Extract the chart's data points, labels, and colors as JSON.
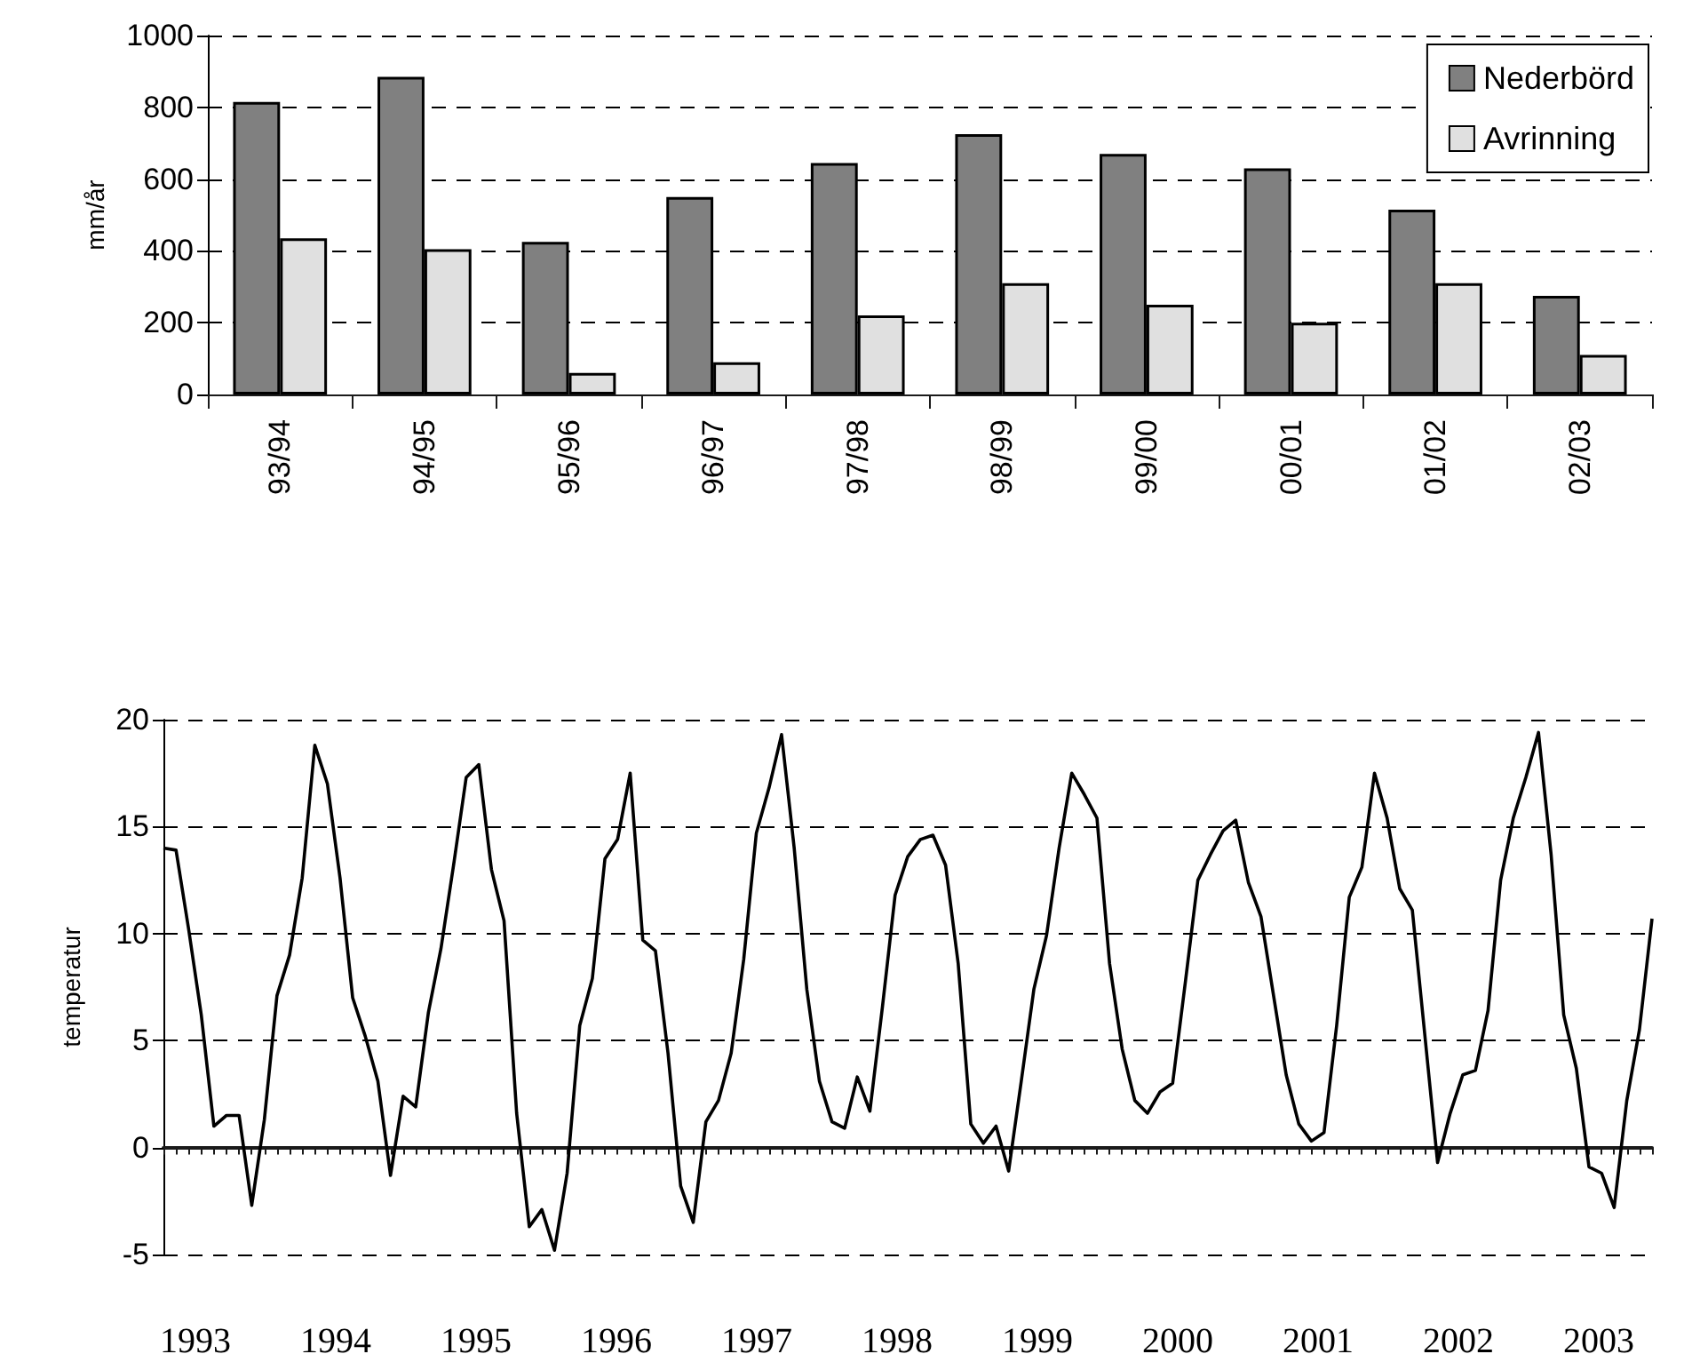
{
  "chart_data": [
    {
      "type": "bar",
      "ylabel": "mm/år",
      "categories": [
        "93/94",
        "94/95",
        "95/96",
        "96/97",
        "97/98",
        "98/99",
        "99/00",
        "00/01",
        "01/02",
        "02/03"
      ],
      "series": [
        {
          "name": "Nederbörd",
          "color": "#808080",
          "values": [
            815,
            885,
            425,
            550,
            645,
            725,
            670,
            630,
            515,
            275
          ]
        },
        {
          "name": "Avrinning",
          "color": "#e0e0e0",
          "values": [
            435,
            405,
            60,
            90,
            220,
            310,
            250,
            200,
            310,
            110
          ]
        }
      ],
      "ylim": [
        0,
        1000
      ],
      "yticks": [
        0,
        200,
        400,
        600,
        800,
        1000
      ],
      "grid": "y",
      "legend": "top right"
    },
    {
      "type": "line",
      "ylabel": "temperatur",
      "tick_labels": "y",
      "line_style": "solid",
      "categories": [
        null,
        null,
        null,
        null,
        null,
        null,
        null,
        null,
        null,
        null,
        null,
        null,
        null,
        null,
        null,
        null,
        null,
        null,
        null,
        null,
        null,
        null,
        null,
        null,
        null,
        null,
        null,
        null,
        null,
        null,
        null,
        null,
        null,
        null,
        null,
        null,
        null,
        null,
        null,
        null,
        null,
        null,
        null,
        null,
        null,
        null,
        null,
        null,
        null,
        null,
        null,
        null,
        null,
        null,
        null,
        null,
        null,
        null,
        null,
        null,
        null,
        null,
        null,
        null,
        null,
        null,
        null,
        null,
        null,
        null,
        null,
        null,
        null,
        null,
        null,
        null,
        null,
        null,
        null,
        null,
        null,
        null,
        null,
        null,
        null,
        null,
        null,
        null,
        null,
        null,
        null,
        null,
        null,
        null,
        null,
        null,
        null,
        null,
        null,
        null,
        null,
        null,
        null,
        null,
        null,
        null,
        null,
        null,
        null,
        null,
        null,
        null,
        null,
        null,
        null,
        null,
        null,
        null,
        null
      ],
      "series": [
        {
          "color": "#000000",
          "values": [
            14.0,
            13.9,
            10.2,
            6.2,
            1.0,
            1.5,
            1.5,
            -2.7,
            1.3,
            7.1,
            9.0,
            12.6,
            18.8,
            17.0,
            12.6,
            7.0,
            5.2,
            3.1,
            -1.3,
            2.4,
            1.9,
            6.3,
            9.3,
            13.2,
            17.3,
            17.9,
            13.0,
            10.6,
            1.6,
            -3.7,
            -2.9,
            -4.8,
            -1.2,
            5.7,
            7.9,
            13.5,
            14.4,
            17.5,
            9.7,
            9.2,
            4.4,
            -1.8,
            -3.5,
            1.2,
            2.2,
            4.4,
            8.8,
            14.7,
            16.8,
            19.3,
            14.0,
            7.4,
            3.1,
            1.2,
            0.9,
            3.3,
            1.7,
            6.6,
            11.8,
            13.6,
            14.4,
            14.6,
            13.2,
            8.6,
            1.1,
            0.2,
            1.0,
            -1.1,
            3.1,
            7.4,
            9.9,
            14.0,
            17.5,
            16.5,
            15.4,
            8.6,
            4.6,
            2.2,
            1.6,
            2.6,
            3.0,
            7.7,
            12.5,
            13.7,
            14.8,
            15.3,
            12.4,
            10.8,
            7.1,
            3.4,
            1.1,
            0.3,
            0.7,
            5.7,
            11.7,
            13.1,
            17.5,
            15.4,
            12.1,
            11.1,
            5.2,
            -0.7,
            1.6,
            3.4,
            3.6,
            6.4,
            12.5,
            15.4,
            17.3,
            19.4,
            13.7,
            6.2,
            3.7,
            -0.9,
            -1.2,
            -2.8,
            2.2,
            5.5,
            10.7
          ]
        }
      ],
      "ylim": [
        -5,
        20
      ],
      "yticks": [
        -5,
        0,
        5,
        10,
        15,
        20
      ],
      "grid": "y",
      "annotations": [
        "1993",
        "1994",
        "1995",
        "1996",
        "1997",
        "1998",
        "1999",
        "2000",
        "2001",
        "2002",
        "2003"
      ]
    }
  ]
}
